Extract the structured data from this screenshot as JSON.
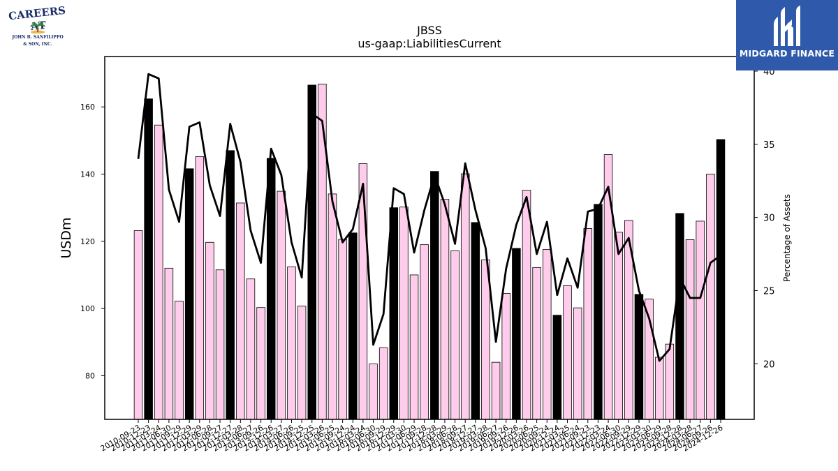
{
  "logos": {
    "left": {
      "line1": "CAREERS AT",
      "line2": "JOHN B. SANFILIPPO",
      "line3": "& SON, INC."
    },
    "right": {
      "brand": "MIDGARD FINANCE"
    }
  },
  "chart_data": {
    "type": "bar",
    "title": "JBSS",
    "subtitle": "us-gaap:LiabilitiesCurrent",
    "ylabel": "USDm",
    "y2label": "Percentage of Assets",
    "ylim": [
      67,
      175
    ],
    "y2lim": [
      16.2,
      41
    ],
    "yticks": [
      80,
      100,
      120,
      140,
      160
    ],
    "y2ticks": [
      20,
      25,
      30,
      35,
      40
    ],
    "colors": {
      "quarter_bar": "#ffccec",
      "annual_bar": "#000000",
      "line": "#000000",
      "edge": "#000000"
    },
    "categories": [
      "2010-09-23",
      "2010-12-23",
      "2011-03-24",
      "2011-06-30",
      "2011-09-29",
      "2011-12-29",
      "2012-03-29",
      "2012-06-28",
      "2012-09-27",
      "2012-12-27",
      "2013-03-28",
      "2013-06-27",
      "2013-09-26",
      "2013-12-26",
      "2014-03-27",
      "2014-06-26",
      "2014-09-25",
      "2014-12-25",
      "2015-03-26",
      "2015-06-25",
      "2015-09-24",
      "2015-12-24",
      "2016-03-24",
      "2016-06-30",
      "2016-09-29",
      "2016-12-29",
      "2017-03-30",
      "2017-06-29",
      "2017-09-28",
      "2017-12-28",
      "2018-03-29",
      "2018-06-28",
      "2018-09-27",
      "2018-12-27",
      "2019-03-28",
      "2019-06-27",
      "2019-09-26",
      "2019-12-26",
      "2020-03-26",
      "2020-06-25",
      "2020-09-24",
      "2020-12-24",
      "2021-03-25",
      "2021-06-24",
      "2021-09-23",
      "2021-12-23",
      "2022-03-24",
      "2022-06-30",
      "2022-09-29",
      "2022-12-29",
      "2023-03-30",
      "2023-06-29",
      "2023-09-28",
      "2023-12-28",
      "2024-03-28",
      "2024-06-27",
      "2024-09-26",
      "2024-12-26"
    ],
    "series": [
      {
        "values": [
          123.2,
          162.4,
          154.6,
          112.0,
          102.2,
          141.6,
          145.2,
          119.7,
          111.5,
          147.0,
          131.4,
          108.8,
          100.3,
          144.7,
          134.9,
          112.4,
          100.7,
          166.5,
          166.8,
          134.1,
          120.6,
          122.5,
          143.1,
          83.5,
          88.3,
          130.0,
          130.2,
          110.0,
          119.0,
          140.8,
          132.5,
          117.2,
          140.1,
          125.6,
          114.5,
          84.0,
          104.5,
          117.9,
          135.2,
          112.2,
          117.6,
          98.0,
          106.8,
          100.2,
          123.8,
          131.0,
          145.8,
          122.7,
          126.2,
          104.2,
          102.8,
          85.5,
          89.4,
          128.3,
          120.5,
          126.0,
          140.0,
          150.3
        ]
      },
      {
        "values": [
          34.0,
          39.8,
          39.5,
          31.9,
          29.7,
          36.2,
          36.5,
          32.2,
          30.1,
          36.4,
          33.8,
          29.1,
          26.9,
          34.7,
          32.9,
          28.3,
          25.9,
          37.1,
          36.6,
          31.1,
          28.3,
          29.2,
          32.3,
          21.3,
          23.4,
          32.0,
          31.6,
          27.6,
          30.5,
          32.9,
          30.9,
          28.2,
          33.7,
          30.5,
          27.9,
          21.5,
          26.5,
          29.5,
          31.4,
          27.5,
          29.7,
          24.7,
          27.2,
          25.2,
          30.4,
          30.6,
          32.1,
          27.5,
          28.6,
          25.0,
          23.1,
          20.2,
          21.0,
          25.9,
          24.5,
          24.5,
          26.9,
          27.4
        ]
      }
    ]
  }
}
